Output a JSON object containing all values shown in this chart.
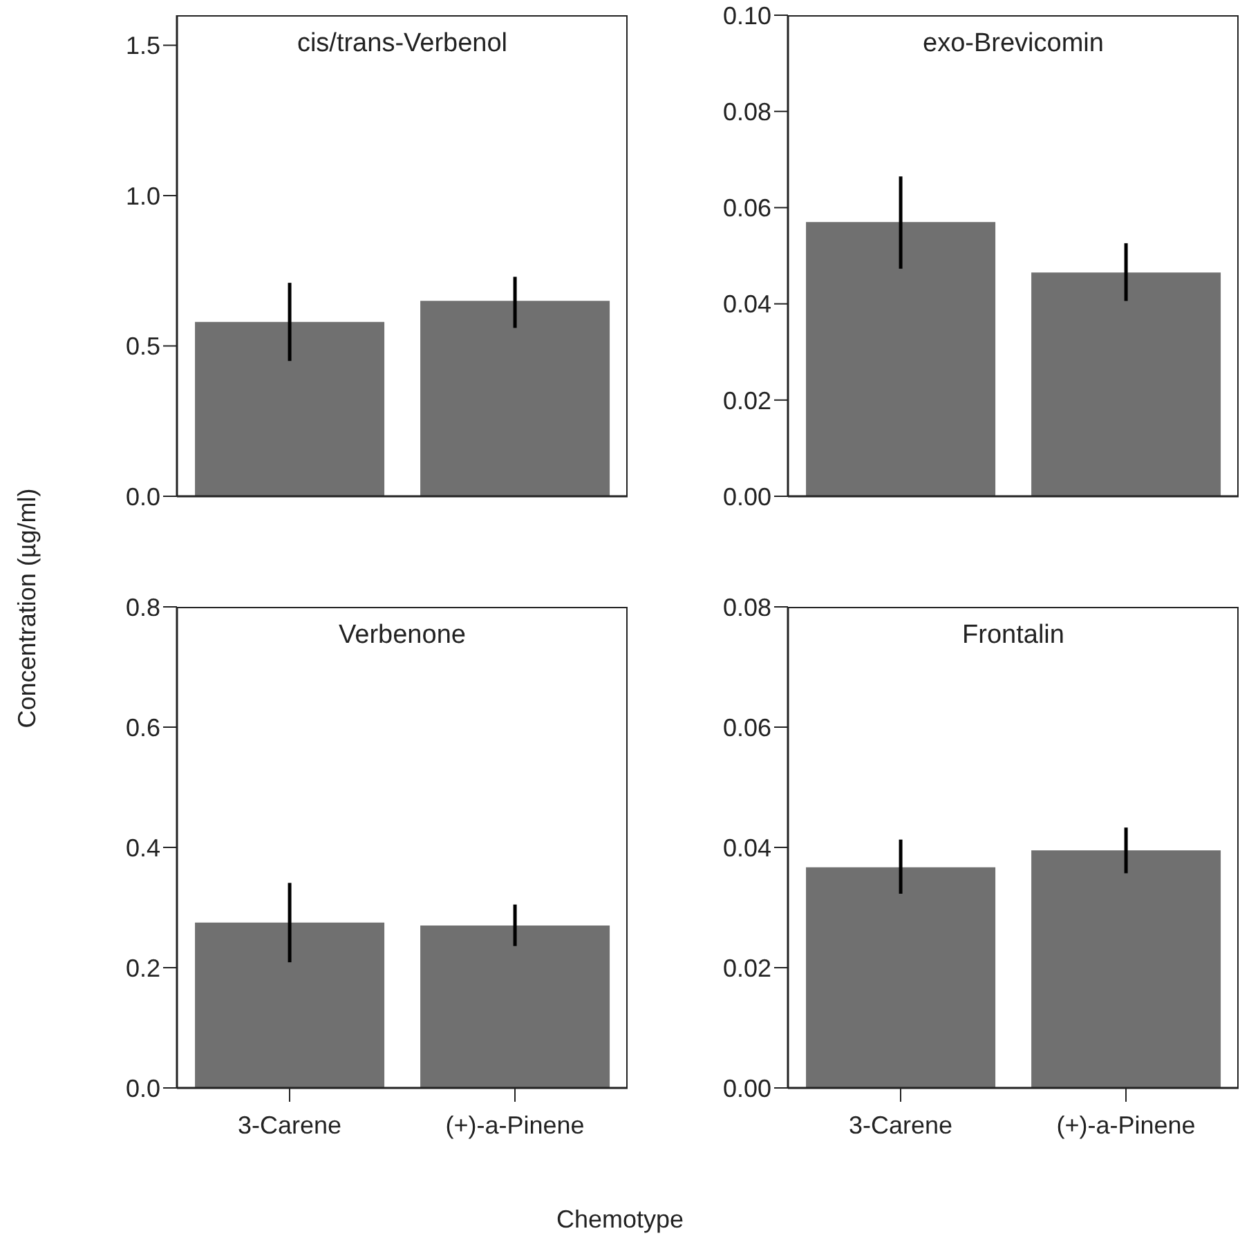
{
  "chart_data": [
    {
      "type": "bar",
      "title": "cis/trans-Verbenol",
      "ylabel": "Concentration (µg/ml)",
      "categories": [
        null,
        null
      ],
      "values": [
        0.58,
        0.65
      ],
      "errors": [
        [
          0.45,
          0.71
        ],
        [
          0.56,
          0.73
        ]
      ],
      "color": "#707070",
      "ylim": [
        0,
        1.6
      ],
      "yticks": [
        {
          "value": 0,
          "label": "0.0"
        },
        0.5,
        {
          "value": 1,
          "label": "1.0"
        },
        1.5
      ],
      "tick_labels": "y"
    },
    {
      "type": "bar",
      "title": "exo-Brevicomin",
      "categories": [
        null,
        null
      ],
      "values": [
        0.057,
        0.0465
      ],
      "errors": [
        [
          0.0473,
          0.0665
        ],
        [
          0.0406,
          0.0526
        ]
      ],
      "color": "#707070",
      "ylim": [
        0,
        0.1
      ],
      "yticks": [
        {
          "value": 0,
          "label": "0.00"
        },
        0.02,
        0.04,
        0.06,
        0.08,
        {
          "value": 0.1,
          "label": "0.10"
        }
      ],
      "tick_labels": "y"
    },
    {
      "type": "bar",
      "title": "Verbenone",
      "xlabel": "Chemotype",
      "categories": [
        "3-Carene",
        "(+)-a-Pinene"
      ],
      "values": [
        0.275,
        0.27
      ],
      "errors": [
        [
          0.209,
          0.341
        ],
        [
          0.236,
          0.305
        ]
      ],
      "color": "#707070",
      "ylim": [
        0,
        0.8
      ],
      "yticks": [
        {
          "value": 0,
          "label": "0.0"
        },
        0.2,
        0.4,
        0.6,
        0.8
      ]
    },
    {
      "type": "bar",
      "title": "Frontalin",
      "categories": [
        "3-Carene",
        "(+)-a-Pinene"
      ],
      "values": [
        0.0367,
        0.0395
      ],
      "errors": [
        [
          0.0323,
          0.0413
        ],
        [
          0.0357,
          0.0433
        ]
      ],
      "color": "#707070",
      "ylim": [
        0,
        0.08
      ],
      "yticks": [
        {
          "value": 0,
          "label": "0.00"
        },
        0.02,
        0.04,
        0.06,
        0.08
      ]
    }
  ]
}
